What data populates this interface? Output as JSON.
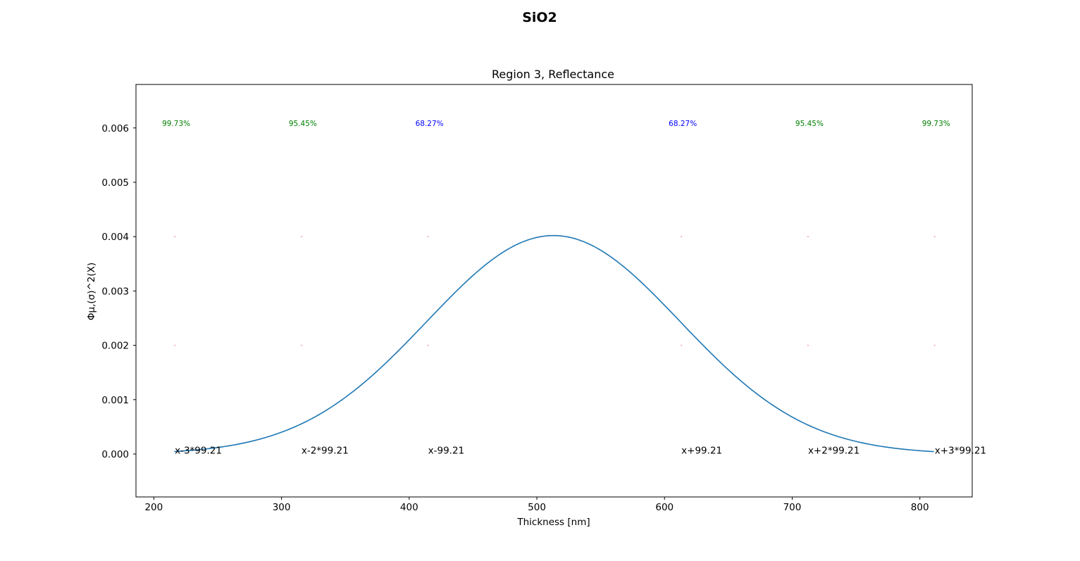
{
  "figure": {
    "suptitle": "SiO2"
  },
  "chart_data": {
    "type": "line",
    "title": "Region 3, Reflectance",
    "xlabel": "Thickness [nm]",
    "ylabel": "Φμ,(σ)^2(X)",
    "xlim": [
      186,
      841
    ],
    "ylim": [
      -0.00079,
      0.0068
    ],
    "xticks": [
      200,
      300,
      400,
      500,
      600,
      700,
      800
    ],
    "yticks": [
      0.0,
      0.001,
      0.002,
      0.003,
      0.004,
      0.005,
      0.006
    ],
    "ytick_labels": [
      "0.000",
      "0.001",
      "0.002",
      "0.003",
      "0.004",
      "0.005",
      "0.006"
    ],
    "grid": false,
    "line_color": "#1f77b4",
    "gaussian": {
      "mean": 513,
      "sigma": 99.21,
      "peak": 0.00402
    },
    "series": [
      {
        "x": [
          216,
          240,
          260,
          280,
          300,
          320,
          340,
          360,
          380,
          400,
          420,
          440,
          460,
          480,
          500,
          513,
          520,
          540,
          560,
          580,
          600,
          620,
          640,
          660,
          680,
          700,
          720,
          740,
          760,
          780,
          800,
          811
        ],
        "values": [
          4e-05,
          7e-05,
          0.00013,
          0.00022,
          0.00037,
          0.00058,
          0.00088,
          0.00126,
          0.00174,
          0.00228,
          0.00287,
          0.00342,
          0.00387,
          0.00416,
          0.00424,
          0.00402,
          0.00401,
          0.00389,
          0.0036,
          0.00316,
          0.00264,
          0.00209,
          0.00158,
          0.00113,
          0.00077,
          0.00051,
          0.00031,
          0.00018,
          0.0001,
          6e-05,
          4e-05,
          4e-05
        ]
      }
    ],
    "sigma_markers": [
      {
        "x": 216.4,
        "label": "x-3*99.21",
        "pct": "99.73%",
        "pct_color": "#008000"
      },
      {
        "x": 315.6,
        "label": "x-2*99.21",
        "pct": "95.45%",
        "pct_color": "#008000"
      },
      {
        "x": 414.8,
        "label": "x-99.21",
        "pct": "68.27%",
        "pct_color": "#0000ff"
      },
      {
        "x": 613.2,
        "label": "x+99.21",
        "pct": "68.27%",
        "pct_color": "#0000ff"
      },
      {
        "x": 712.4,
        "label": "x+2*99.21",
        "pct": "95.45%",
        "pct_color": "#008000"
      },
      {
        "x": 811.6,
        "label": "x+3*99.21",
        "pct": "99.73%",
        "pct_color": "#008000"
      }
    ],
    "pct_y": 0.006,
    "label_y": 0.0,
    "dot_levels": [
      0.002,
      0.004
    ],
    "dot_color": "#e88aa0"
  }
}
